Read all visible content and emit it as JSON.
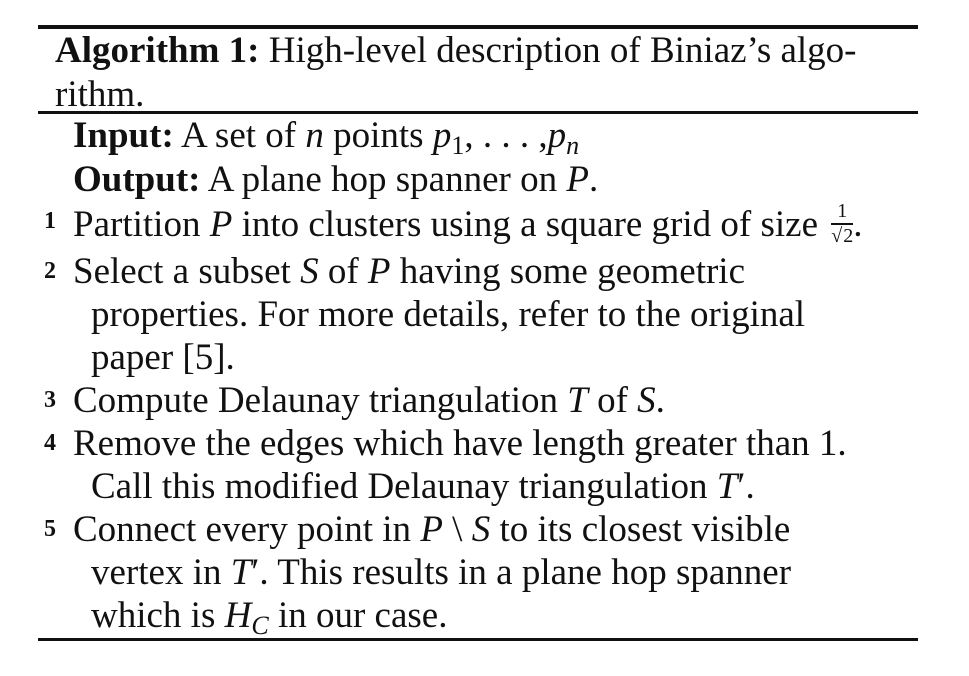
{
  "algorithm": {
    "label": "Algorithm 1:",
    "title_line1": "High-level description of Biniaz’s algo-",
    "title_line2": "rithm.",
    "input_label": "Input:",
    "input_prefix": "A set of",
    "input_n": "n",
    "input_mid": "points",
    "input_p": "p",
    "input_sub1": "1",
    "input_dots": ", . . . ,",
    "input_subn": "n",
    "output_label": "Output:",
    "output_prefix": "A plane hop spanner on",
    "output_P": "P",
    "output_end": ".",
    "steps": [
      {
        "num": "1",
        "t1": "Partition",
        "m1": "P",
        "t2": "into clusters using a square grid of size",
        "frac_num": "1",
        "sqrt_symbol": "√",
        "sqrt_arg": "2",
        "t3": "."
      },
      {
        "num": "2",
        "t1": "Select a subset",
        "m1": "S",
        "t2": "of",
        "m2": "P",
        "t3": "having some geometric",
        "line2": "properties. For more details, refer to the original",
        "line3": "paper [5]."
      },
      {
        "num": "3",
        "t1": "Compute Delaunay triangulation",
        "m1": "T",
        "t2": "of",
        "m2": "S",
        "t3": "."
      },
      {
        "num": "4",
        "line1": "Remove the edges which have length greater than 1.",
        "line2_prefix": "Call this modified Delaunay triangulation",
        "m1": "T",
        "prime": "′",
        "line2_end": "."
      },
      {
        "num": "5",
        "t1": "Connect every point in",
        "m1": "P",
        "op": "\\",
        "m2": "S",
        "t2": "to its closest visible",
        "line2_prefix": "vertex in",
        "m3": "T",
        "prime": "′",
        "line2_rest": ". This results in a plane hop spanner",
        "line3_prefix": "which is",
        "m4": "H",
        "m4_sub": "C",
        "line3_end": "in our case."
      }
    ]
  }
}
